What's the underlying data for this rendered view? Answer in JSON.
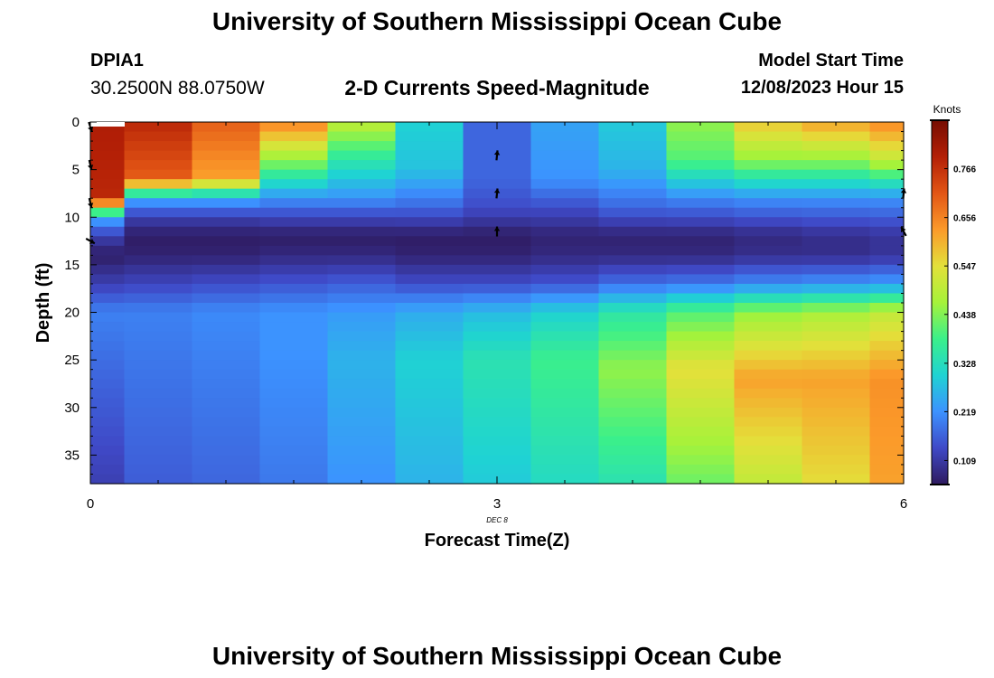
{
  "page": {
    "title_top": "University of Southern Mississippi Ocean Cube",
    "title_bottom": "University of Southern Mississippi Ocean Cube",
    "station": "DPIA1",
    "coords": "30.2500N  88.0750W",
    "subtitle": "2-D Currents Speed-Magnitude",
    "model_start_label": "Model Start Time",
    "model_start_value": "12/08/2023 Hour 15",
    "date_tag": "DEC 8"
  },
  "chart_data": {
    "type": "heatmap",
    "title": "2-D Currents Speed-Magnitude",
    "xlabel": "Forecast Time(Z)",
    "ylabel": "Depth (ft)",
    "xlim": [
      0,
      6
    ],
    "ylim": [
      38,
      0
    ],
    "x_ticks": [
      "0",
      "3",
      "6"
    ],
    "y_ticks": [
      "0",
      "5",
      "10",
      "15",
      "20",
      "25",
      "30",
      "35"
    ],
    "colorbar": {
      "label": "Knots",
      "min": 0.055,
      "max": 0.875,
      "ticks": [
        "0.766",
        "0.656",
        "0.547",
        "0.438",
        "0.328",
        "0.219",
        "0.109"
      ],
      "colors": [
        "#2e1a5e",
        "#3f49c7",
        "#3c92ff",
        "#1fd3d3",
        "#3bf08a",
        "#a6f23a",
        "#e3e03a",
        "#fb9a2a",
        "#e25515",
        "#b31f06",
        "#760d02"
      ]
    },
    "columns_time": [
      0.0,
      0.5,
      1.0,
      1.5,
      2.0,
      2.5,
      3.0,
      3.5,
      4.0,
      4.5,
      5.0,
      5.5,
      6.0
    ],
    "column_profiles": [
      {
        "time": 0.0,
        "depth": [
          0,
          8,
          10,
          12,
          14,
          17,
          20,
          38
        ],
        "speed": [
          0.8,
          0.78,
          0.25,
          0.12,
          0.06,
          0.12,
          0.2,
          0.12
        ]
      },
      {
        "time": 0.5,
        "depth": [
          0,
          6,
          8,
          10,
          12,
          14,
          17,
          20,
          38
        ],
        "speed": [
          0.78,
          0.7,
          0.25,
          0.12,
          0.06,
          0.07,
          0.13,
          0.2,
          0.16
        ]
      },
      {
        "time": 1.0,
        "depth": [
          0,
          6,
          8,
          10,
          12,
          14,
          17,
          20,
          38
        ],
        "speed": [
          0.7,
          0.62,
          0.25,
          0.12,
          0.06,
          0.07,
          0.14,
          0.21,
          0.17
        ]
      },
      {
        "time": 1.5,
        "depth": [
          0,
          4,
          8,
          10,
          12,
          14,
          17,
          20,
          24,
          38
        ],
        "speed": [
          0.66,
          0.45,
          0.22,
          0.13,
          0.06,
          0.08,
          0.15,
          0.22,
          0.22,
          0.19
        ]
      },
      {
        "time": 2.0,
        "depth": [
          0,
          4,
          8,
          10,
          12,
          14,
          17,
          20,
          25,
          38
        ],
        "speed": [
          0.5,
          0.35,
          0.22,
          0.13,
          0.06,
          0.08,
          0.16,
          0.23,
          0.26,
          0.22
        ]
      },
      {
        "time": 2.5,
        "depth": [
          0,
          5,
          9,
          12,
          14,
          17,
          20,
          25,
          38
        ],
        "speed": [
          0.3,
          0.28,
          0.17,
          0.06,
          0.07,
          0.14,
          0.25,
          0.3,
          0.26
        ]
      },
      {
        "time": 3.0,
        "depth": [
          0,
          6,
          9,
          12,
          14,
          17,
          20,
          25,
          38
        ],
        "speed": [
          0.17,
          0.17,
          0.14,
          0.06,
          0.07,
          0.14,
          0.27,
          0.34,
          0.29
        ]
      },
      {
        "time": 3.5,
        "depth": [
          0,
          6,
          9,
          12,
          14,
          17,
          20,
          25,
          38
        ],
        "speed": [
          0.24,
          0.22,
          0.14,
          0.07,
          0.08,
          0.15,
          0.3,
          0.38,
          0.32
        ]
      },
      {
        "time": 4.0,
        "depth": [
          0,
          5,
          9,
          12,
          14,
          17,
          20,
          26,
          38
        ],
        "speed": [
          0.29,
          0.26,
          0.17,
          0.07,
          0.08,
          0.18,
          0.35,
          0.45,
          0.34
        ]
      },
      {
        "time": 4.5,
        "depth": [
          0,
          4,
          8,
          12,
          14,
          17,
          20,
          26,
          38
        ],
        "speed": [
          0.45,
          0.4,
          0.21,
          0.07,
          0.08,
          0.19,
          0.4,
          0.55,
          0.42
        ]
      },
      {
        "time": 5.0,
        "depth": [
          0,
          4,
          8,
          12,
          14,
          17,
          20,
          27,
          38
        ],
        "speed": [
          0.58,
          0.45,
          0.22,
          0.08,
          0.09,
          0.21,
          0.45,
          0.62,
          0.5
        ]
      },
      {
        "time": 5.5,
        "depth": [
          0,
          4,
          8,
          12,
          14,
          17,
          20,
          27,
          38
        ],
        "speed": [
          0.62,
          0.45,
          0.22,
          0.09,
          0.09,
          0.22,
          0.47,
          0.62,
          0.55
        ]
      },
      {
        "time": 6.0,
        "depth": [
          0,
          4,
          8,
          12,
          14,
          17,
          20,
          27,
          38
        ],
        "speed": [
          0.65,
          0.5,
          0.22,
          0.1,
          0.1,
          0.23,
          0.5,
          0.64,
          0.62
        ]
      }
    ],
    "vectors": [
      {
        "time": 0.0,
        "depth": 0.5,
        "dx": 0.3,
        "dy": 0.9
      },
      {
        "time": 0.0,
        "depth": 4.5,
        "dx": 0.2,
        "dy": 0.9
      },
      {
        "time": 0.0,
        "depth": 8.5,
        "dx": 0.2,
        "dy": 0.9
      },
      {
        "time": 0.0,
        "depth": 12.5,
        "dx": 0.9,
        "dy": 0.5
      },
      {
        "time": 3.0,
        "depth": 3.5,
        "dx": 0.1,
        "dy": -1.0
      },
      {
        "time": 3.0,
        "depth": 7.5,
        "dx": 0.1,
        "dy": -1.0
      },
      {
        "time": 3.0,
        "depth": 11.5,
        "dx": 0.0,
        "dy": -1.0
      },
      {
        "time": 6.0,
        "depth": 7.5,
        "dx": 0.1,
        "dy": -1.0
      },
      {
        "time": 6.0,
        "depth": 11.5,
        "dx": -0.5,
        "dy": -0.9
      }
    ]
  }
}
